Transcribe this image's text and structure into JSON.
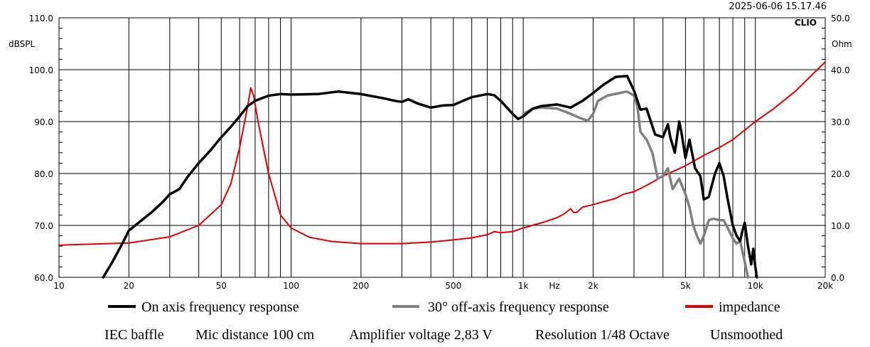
{
  "header": {
    "timestamp": "2025-06-06 15.17.46",
    "brand": "CLIO"
  },
  "chart_data": {
    "type": "line",
    "title": "",
    "xlabel": "Hz",
    "ylabel": "dBSPL",
    "ylabel_right": "Ohm",
    "x_scale": "log",
    "xlim": [
      10,
      20000
    ],
    "ylim": [
      60,
      110
    ],
    "ylim_right": [
      0,
      50
    ],
    "grid": true,
    "x_ticks": [
      {
        "v": 10,
        "label": "10"
      },
      {
        "v": 20,
        "label": "20"
      },
      {
        "v": 50,
        "label": "50"
      },
      {
        "v": 100,
        "label": "100"
      },
      {
        "v": 200,
        "label": "200"
      },
      {
        "v": 500,
        "label": "500"
      },
      {
        "v": 1000,
        "label": "1k"
      },
      {
        "v": 2000,
        "label": "2k"
      },
      {
        "v": 5000,
        "label": "5k"
      },
      {
        "v": 10000,
        "label": "10k"
      },
      {
        "v": 20000,
        "label": "20k"
      }
    ],
    "y_ticks": [
      {
        "v": 60,
        "label": "60.0"
      },
      {
        "v": 70,
        "label": "70.0"
      },
      {
        "v": 80,
        "label": "80.0"
      },
      {
        "v": 90,
        "label": "90.0"
      },
      {
        "v": 100,
        "label": "100.0"
      },
      {
        "v": 110,
        "label": "110.0"
      }
    ],
    "y_ticks_right": [
      {
        "v": 0,
        "label": "0.0"
      },
      {
        "v": 10,
        "label": "10.0"
      },
      {
        "v": 20,
        "label": "20.0"
      },
      {
        "v": 30,
        "label": "30.0"
      },
      {
        "v": 40,
        "label": "40.0"
      },
      {
        "v": 50,
        "label": "50.0"
      }
    ],
    "series": [
      {
        "name": "On axis frequency response",
        "color": "#000000",
        "axis": "left",
        "points": [
          [
            15.5,
            60.0
          ],
          [
            17,
            63
          ],
          [
            19,
            67
          ],
          [
            20,
            69
          ],
          [
            22,
            70.5
          ],
          [
            25,
            72.5
          ],
          [
            28,
            74.5
          ],
          [
            30,
            76
          ],
          [
            33,
            77
          ],
          [
            36,
            79.5
          ],
          [
            40,
            82
          ],
          [
            45,
            84.5
          ],
          [
            50,
            87
          ],
          [
            55,
            89
          ],
          [
            60,
            91
          ],
          [
            65,
            93
          ],
          [
            70,
            94
          ],
          [
            80,
            95
          ],
          [
            90,
            95.3
          ],
          [
            100,
            95.2
          ],
          [
            130,
            95.3
          ],
          [
            160,
            95.8
          ],
          [
            200,
            95.3
          ],
          [
            250,
            94.5
          ],
          [
            280,
            94.0
          ],
          [
            300,
            93.8
          ],
          [
            320,
            94.3
          ],
          [
            350,
            93.5
          ],
          [
            400,
            92.7
          ],
          [
            450,
            93.1
          ],
          [
            500,
            93.2
          ],
          [
            550,
            94.0
          ],
          [
            600,
            94.7
          ],
          [
            700,
            95.3
          ],
          [
            750,
            95.1
          ],
          [
            800,
            94
          ],
          [
            900,
            91.5
          ],
          [
            950,
            90.5
          ],
          [
            1000,
            91
          ],
          [
            1100,
            92.5
          ],
          [
            1200,
            93
          ],
          [
            1400,
            93.3
          ],
          [
            1600,
            92.7
          ],
          [
            1800,
            94
          ],
          [
            2000,
            95.5
          ],
          [
            2200,
            97
          ],
          [
            2500,
            98.6
          ],
          [
            2800,
            98.8
          ],
          [
            3000,
            96
          ],
          [
            3200,
            92.3
          ],
          [
            3400,
            92.5
          ],
          [
            3700,
            87.5
          ],
          [
            4000,
            87
          ],
          [
            4200,
            89.5
          ],
          [
            4300,
            87
          ],
          [
            4500,
            84
          ],
          [
            4700,
            90
          ],
          [
            4800,
            88
          ],
          [
            5000,
            83
          ],
          [
            5200,
            86.5
          ],
          [
            5500,
            81
          ],
          [
            5800,
            79.5
          ],
          [
            6000,
            75
          ],
          [
            6300,
            75.5
          ],
          [
            6700,
            80
          ],
          [
            7000,
            82
          ],
          [
            7300,
            79.5
          ],
          [
            7600,
            75
          ],
          [
            8000,
            70
          ],
          [
            8300,
            68
          ],
          [
            8600,
            67
          ],
          [
            8800,
            69
          ],
          [
            9000,
            70.5
          ],
          [
            9300,
            66
          ],
          [
            9600,
            62.5
          ],
          [
            9800,
            65.5
          ],
          [
            10000,
            62
          ],
          [
            10150,
            60.0
          ]
        ]
      },
      {
        "name": "30° off-axis frequency response",
        "color": "#808080",
        "axis": "left",
        "points": [
          [
            1000,
            91.5
          ],
          [
            1100,
            92.5
          ],
          [
            1200,
            92.7
          ],
          [
            1400,
            92.5
          ],
          [
            1600,
            91.5
          ],
          [
            1800,
            90.5
          ],
          [
            1900,
            90.2
          ],
          [
            2000,
            91.5
          ],
          [
            2100,
            94
          ],
          [
            2300,
            95
          ],
          [
            2600,
            95.5
          ],
          [
            2800,
            95.8
          ],
          [
            3000,
            95
          ],
          [
            3100,
            93
          ],
          [
            3200,
            88
          ],
          [
            3400,
            86.5
          ],
          [
            3600,
            84
          ],
          [
            3800,
            79
          ],
          [
            4000,
            79.5
          ],
          [
            4200,
            81
          ],
          [
            4400,
            77
          ],
          [
            4700,
            79
          ],
          [
            5000,
            76
          ],
          [
            5200,
            73.5
          ],
          [
            5400,
            70
          ],
          [
            5600,
            68
          ],
          [
            5800,
            66.5
          ],
          [
            6000,
            68
          ],
          [
            6300,
            71
          ],
          [
            6600,
            71.3
          ],
          [
            7000,
            71
          ],
          [
            7300,
            71
          ],
          [
            7600,
            69.5
          ],
          [
            8000,
            67.5
          ],
          [
            8300,
            66.5
          ],
          [
            8600,
            67
          ],
          [
            9000,
            63
          ],
          [
            9300,
            60.0
          ]
        ]
      },
      {
        "name": "impedance",
        "color": "#e00000",
        "axis": "right",
        "points": [
          [
            10,
            6.2
          ],
          [
            20,
            6.6
          ],
          [
            30,
            7.8
          ],
          [
            40,
            10
          ],
          [
            50,
            14
          ],
          [
            55,
            18
          ],
          [
            60,
            25
          ],
          [
            65,
            33
          ],
          [
            67,
            36.5
          ],
          [
            69,
            35
          ],
          [
            72,
            30
          ],
          [
            80,
            20
          ],
          [
            90,
            12
          ],
          [
            100,
            9.5
          ],
          [
            120,
            7.7
          ],
          [
            150,
            6.9
          ],
          [
            200,
            6.5
          ],
          [
            300,
            6.5
          ],
          [
            400,
            6.8
          ],
          [
            500,
            7.2
          ],
          [
            600,
            7.6
          ],
          [
            700,
            8.2
          ],
          [
            750,
            8.8
          ],
          [
            800,
            8.6
          ],
          [
            900,
            8.8
          ],
          [
            1000,
            9.5
          ],
          [
            1200,
            10.5
          ],
          [
            1400,
            11.5
          ],
          [
            1500,
            12.2
          ],
          [
            1600,
            13.2
          ],
          [
            1650,
            12.5
          ],
          [
            1700,
            12.5
          ],
          [
            1800,
            13.5
          ],
          [
            2000,
            14
          ],
          [
            2500,
            15.2
          ],
          [
            2700,
            16.0
          ],
          [
            3000,
            16.5
          ],
          [
            3500,
            18
          ],
          [
            4000,
            19.5
          ],
          [
            5000,
            21.5
          ],
          [
            6000,
            23.5
          ],
          [
            7000,
            25
          ],
          [
            8000,
            26.5
          ],
          [
            10000,
            30
          ],
          [
            12000,
            32.5
          ],
          [
            15000,
            36
          ],
          [
            18000,
            39.5
          ],
          [
            20000,
            41.5
          ]
        ]
      }
    ]
  },
  "info": {
    "baffle": "IEC baffle",
    "mic": "Mic distance 100 cm",
    "amp": "Amplifier voltage 2,83 V",
    "res": "Resolution 1/48 Octave",
    "smooth": "Unsmoothed"
  }
}
